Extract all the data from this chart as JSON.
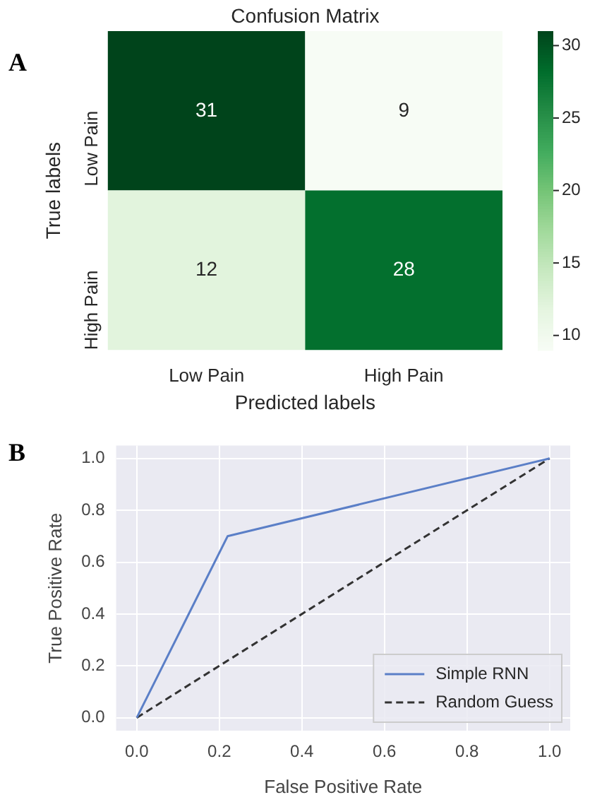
{
  "chart_data": [
    {
      "type": "heatmap",
      "title": "Confusion Matrix",
      "xlabel": "Predicted labels",
      "ylabel": "True labels",
      "annotations": [
        "A"
      ],
      "categories": [
        "Low Pain",
        "High Pain"
      ],
      "y_categories": [
        "Low Pain",
        "High Pain"
      ],
      "cells": [
        [
          31,
          9
        ],
        [
          12,
          28
        ]
      ],
      "clim": [
        9,
        31
      ],
      "cticks": [
        10,
        15,
        20,
        25,
        30
      ],
      "data_labels": true
    },
    {
      "type": "line",
      "xlabel": "False Positive Rate",
      "ylabel": "True Positive Rate",
      "annotations": [
        "B"
      ],
      "series": [
        {
          "name": "Simple RNN",
          "color": "#5b7fc7",
          "x": [
            0,
            0.22,
            1
          ],
          "values": [
            0,
            0.7,
            1
          ],
          "line_style": "solid"
        },
        {
          "name": "Random Guess",
          "color": "#333333",
          "x": [
            0,
            1
          ],
          "values": [
            0,
            1
          ],
          "line_style": "dashed"
        }
      ],
      "xlim": [
        -0.05,
        1.05
      ],
      "ylim": [
        -0.05,
        1.05
      ],
      "xticks": [
        {
          "value": 0,
          "label": "0.0"
        },
        0.2,
        0.4,
        0.6,
        0.8,
        {
          "value": 1,
          "label": "1.0"
        }
      ],
      "yticks": [
        {
          "value": 0,
          "label": "0.0"
        },
        0.2,
        0.4,
        0.6,
        0.8,
        {
          "value": 1,
          "label": "1.0"
        }
      ],
      "grid": true,
      "legend": "bottom right",
      "marker": "none"
    }
  ]
}
